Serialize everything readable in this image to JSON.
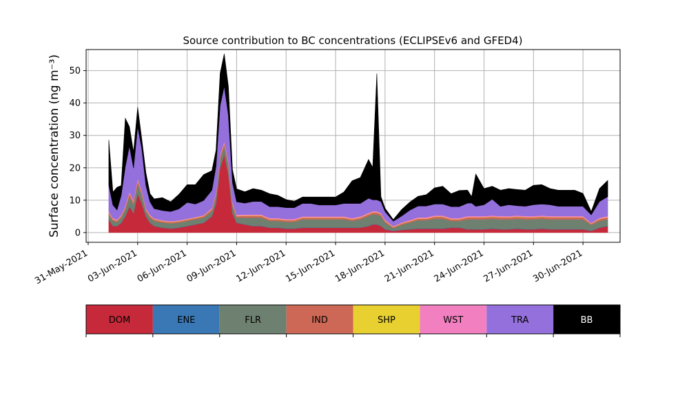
{
  "chart_data": {
    "type": "area",
    "stacked": true,
    "title": "Source contribution to BC concentrations (ECLIPSEv6 and GFED4)",
    "xlabel": "",
    "ylabel": "Surface concentration (ng m⁻³)",
    "ylim": [
      -3,
      56.5
    ],
    "xlim": [
      "2021-05-30T21:00",
      "2021-07-02T06:00"
    ],
    "grid": true,
    "yticks": [
      0,
      10,
      20,
      30,
      40,
      50
    ],
    "xticks": [
      "31-May-2021",
      "03-Jun-2021",
      "06-Jun-2021",
      "09-Jun-2021",
      "12-Jun-2021",
      "15-Jun-2021",
      "18-Jun-2021",
      "21-Jun-2021",
      "24-Jun-2021",
      "27-Jun-2021",
      "30-Jun-2021"
    ],
    "xtick_dates": [
      "2021-05-31",
      "2021-06-03",
      "2021-06-06",
      "2021-06-09",
      "2021-06-12",
      "2021-06-15",
      "2021-06-18",
      "2021-06-21",
      "2021-06-24",
      "2021-06-27",
      "2021-06-30"
    ],
    "legend_position": "below",
    "x": [
      "2021-06-01T06:00",
      "2021-06-01T12:00",
      "2021-06-01T18:00",
      "2021-06-02T00:00",
      "2021-06-02T06:00",
      "2021-06-02T12:00",
      "2021-06-02T18:00",
      "2021-06-03T00:00",
      "2021-06-03T06:00",
      "2021-06-03T12:00",
      "2021-06-03T18:00",
      "2021-06-04T00:00",
      "2021-06-04T12:00",
      "2021-06-05T00:00",
      "2021-06-05T12:00",
      "2021-06-06T00:00",
      "2021-06-06T12:00",
      "2021-06-07T00:00",
      "2021-06-07T12:00",
      "2021-06-07T18:00",
      "2021-06-08T00:00",
      "2021-06-08T06:00",
      "2021-06-08T12:00",
      "2021-06-08T18:00",
      "2021-06-09T00:00",
      "2021-06-09T12:00",
      "2021-06-10T00:00",
      "2021-06-10T12:00",
      "2021-06-11T00:00",
      "2021-06-11T12:00",
      "2021-06-12T00:00",
      "2021-06-12T12:00",
      "2021-06-13T00:00",
      "2021-06-13T12:00",
      "2021-06-14T00:00",
      "2021-06-14T12:00",
      "2021-06-15T00:00",
      "2021-06-15T12:00",
      "2021-06-16T00:00",
      "2021-06-16T12:00",
      "2021-06-17T00:00",
      "2021-06-17T06:00",
      "2021-06-17T12:00",
      "2021-06-17T18:00",
      "2021-06-18T00:00",
      "2021-06-18T12:00",
      "2021-06-19T00:00",
      "2021-06-19T12:00",
      "2021-06-20T00:00",
      "2021-06-20T12:00",
      "2021-06-21T00:00",
      "2021-06-21T12:00",
      "2021-06-22T00:00",
      "2021-06-22T12:00",
      "2021-06-23T00:00",
      "2021-06-23T06:00",
      "2021-06-23T12:00",
      "2021-06-24T00:00",
      "2021-06-24T12:00",
      "2021-06-25T00:00",
      "2021-06-25T12:00",
      "2021-06-26T00:00",
      "2021-06-26T12:00",
      "2021-06-27T00:00",
      "2021-06-27T12:00",
      "2021-06-28T00:00",
      "2021-06-28T12:00",
      "2021-06-29T00:00",
      "2021-06-29T12:00",
      "2021-06-30T00:00",
      "2021-06-30T12:00",
      "2021-07-01T00:00",
      "2021-07-01T12:00"
    ],
    "series": [
      {
        "name": "DOM",
        "color": "#c62a3a",
        "values": [
          4,
          2,
          2,
          3,
          5,
          8,
          6,
          12,
          9,
          5,
          3,
          2,
          1.5,
          1.2,
          1.5,
          2,
          2.5,
          3,
          5,
          9,
          20,
          24,
          18,
          6,
          3,
          2.5,
          2,
          2,
          1.5,
          1.5,
          1.2,
          1.2,
          1.5,
          1.5,
          1.5,
          1.5,
          1.5,
          1.5,
          1.5,
          1.5,
          2,
          2.5,
          2.5,
          2,
          1,
          0.5,
          0.8,
          1,
          1.2,
          1.2,
          1.2,
          1.2,
          1.5,
          1.5,
          1,
          1,
          1,
          1,
          1.2,
          1,
          1,
          1.2,
          1,
          1,
          1.2,
          1,
          1,
          1,
          1,
          1,
          0.5,
          1.5,
          2
        ]
      },
      {
        "name": "ENE",
        "color": "#3a78b5",
        "values": [
          0.1,
          0.1,
          0.1,
          0.1,
          0.1,
          0.1,
          0.1,
          0.1,
          0.1,
          0.1,
          0.1,
          0.1,
          0.1,
          0.1,
          0.1,
          0.1,
          0.1,
          0.1,
          0.1,
          0.1,
          0.1,
          0.1,
          0.1,
          0.1,
          0.1,
          0.1,
          0.1,
          0.1,
          0.1,
          0.1,
          0.1,
          0.1,
          0.1,
          0.1,
          0.1,
          0.1,
          0.1,
          0.1,
          0.1,
          0.1,
          0.1,
          0.1,
          0.1,
          0.1,
          0.1,
          0.1,
          0.1,
          0.1,
          0.1,
          0.1,
          0.1,
          0.1,
          0.1,
          0.1,
          0.1,
          0.1,
          0.1,
          0.1,
          0.1,
          0.1,
          0.1,
          0.1,
          0.1,
          0.1,
          0.1,
          0.1,
          0.1,
          0.1,
          0.1,
          0.1,
          0.1,
          0.1,
          0.1
        ]
      },
      {
        "name": "FLR",
        "color": "#6e8070",
        "values": [
          1.5,
          1.5,
          1.2,
          1.5,
          2,
          3,
          2.5,
          3,
          2.5,
          1.5,
          1.5,
          1.5,
          1.5,
          1.5,
          1.5,
          1.5,
          1.5,
          1.5,
          1.5,
          2,
          2.5,
          2.5,
          2.5,
          2,
          1.5,
          2,
          2.5,
          2.5,
          2,
          2,
          2,
          2,
          2.5,
          2.5,
          2.5,
          2.5,
          2.5,
          2.5,
          2,
          2.5,
          3,
          3,
          3,
          3,
          2,
          0.8,
          1.5,
          2,
          2.5,
          2.5,
          3,
          3,
          2,
          2,
          3,
          3,
          3,
          3,
          3,
          3,
          3,
          3,
          3,
          3,
          3,
          3,
          3,
          3,
          3,
          3,
          1.8,
          2,
          2
        ]
      },
      {
        "name": "IND",
        "color": "#cc6855",
        "values": [
          0.6,
          0.5,
          0.4,
          0.5,
          0.7,
          1,
          0.8,
          1,
          0.8,
          0.5,
          0.5,
          0.5,
          0.4,
          0.4,
          0.4,
          0.4,
          0.4,
          0.5,
          0.6,
          0.8,
          1,
          1,
          1,
          0.8,
          0.5,
          0.6,
          0.6,
          0.6,
          0.5,
          0.5,
          0.5,
          0.5,
          0.5,
          0.5,
          0.5,
          0.5,
          0.5,
          0.5,
          0.5,
          0.5,
          0.6,
          0.6,
          0.6,
          0.6,
          0.5,
          0.3,
          0.4,
          0.4,
          0.5,
          0.5,
          0.6,
          0.6,
          0.5,
          0.5,
          0.6,
          0.6,
          0.6,
          0.6,
          0.6,
          0.6,
          0.6,
          0.6,
          0.6,
          0.6,
          0.6,
          0.6,
          0.6,
          0.6,
          0.6,
          0.6,
          0.3,
          0.6,
          0.6
        ]
      },
      {
        "name": "SHP",
        "color": "#e8d030",
        "values": [
          0.1,
          0.1,
          0.1,
          0.1,
          0.1,
          0.1,
          0.1,
          0.1,
          0.1,
          0.1,
          0.1,
          0.1,
          0.1,
          0.1,
          0.1,
          0.1,
          0.1,
          0.1,
          0.1,
          0.1,
          0.1,
          0.1,
          0.1,
          0.1,
          0.1,
          0.1,
          0.1,
          0.1,
          0.1,
          0.1,
          0.1,
          0.1,
          0.1,
          0.1,
          0.1,
          0.1,
          0.1,
          0.1,
          0.1,
          0.1,
          0.1,
          0.1,
          0.1,
          0.1,
          0.1,
          0.1,
          0.1,
          0.1,
          0.1,
          0.1,
          0.1,
          0.1,
          0.1,
          0.1,
          0.1,
          0.1,
          0.1,
          0.1,
          0.1,
          0.1,
          0.1,
          0.1,
          0.1,
          0.1,
          0.1,
          0.1,
          0.1,
          0.1,
          0.1,
          0.1,
          0.1,
          0.1,
          0.1
        ]
      },
      {
        "name": "WST",
        "color": "#f280c0",
        "values": [
          0.3,
          0.3,
          0.2,
          0.3,
          0.4,
          0.5,
          0.4,
          0.5,
          0.4,
          0.3,
          0.3,
          0.2,
          0.2,
          0.2,
          0.2,
          0.2,
          0.2,
          0.2,
          0.3,
          0.4,
          0.5,
          0.5,
          0.5,
          0.4,
          0.3,
          0.3,
          0.3,
          0.3,
          0.3,
          0.3,
          0.3,
          0.3,
          0.3,
          0.3,
          0.3,
          0.3,
          0.3,
          0.3,
          0.3,
          0.3,
          0.3,
          0.3,
          0.3,
          0.3,
          0.3,
          0.2,
          0.2,
          0.3,
          0.3,
          0.3,
          0.3,
          0.3,
          0.3,
          0.3,
          0.3,
          0.3,
          0.3,
          0.3,
          0.3,
          0.3,
          0.3,
          0.3,
          0.3,
          0.3,
          0.3,
          0.3,
          0.3,
          0.3,
          0.3,
          0.3,
          0.2,
          0.3,
          0.3
        ]
      },
      {
        "name": "TRA",
        "color": "#9370db",
        "values": [
          8,
          4,
          3,
          6,
          12,
          14,
          10,
          16,
          13,
          7,
          4,
          3,
          3,
          3,
          3.5,
          5,
          4,
          4.5,
          5.5,
          8,
          15,
          17,
          14,
          6,
          4,
          3.5,
          4,
          4,
          3.5,
          3.5,
          3.5,
          3.5,
          4,
          4,
          3.5,
          3.5,
          3.5,
          4,
          4.5,
          4,
          4.5,
          3.5,
          3.5,
          3.5,
          2.5,
          1.5,
          2,
          3,
          3.5,
          3.5,
          3.5,
          3.5,
          3.5,
          3.5,
          4,
          4,
          3,
          3.5,
          5,
          3,
          3.5,
          3,
          3,
          3.5,
          3.5,
          3.5,
          3,
          3,
          3,
          3,
          2.5,
          5,
          6
        ]
      },
      {
        "name": "BB",
        "color": "#000000",
        "values": [
          14,
          4,
          7,
          3,
          15,
          6,
          5,
          6,
          3,
          4,
          2.5,
          3,
          4,
          3,
          4.5,
          5.5,
          6,
          8,
          6,
          5,
          10,
          10,
          9,
          4,
          4,
          3.5,
          4,
          3.5,
          4,
          3.5,
          2.5,
          2,
          2,
          2,
          2.5,
          2.5,
          2.5,
          3.5,
          7,
          8,
          12,
          10,
          39,
          1.5,
          1,
          0.5,
          2,
          2.5,
          3,
          3.5,
          5,
          5.5,
          4,
          5,
          4,
          2,
          10,
          5,
          4,
          5,
          5,
          5,
          5,
          6,
          6,
          5,
          5,
          5,
          5,
          4,
          1,
          4,
          5
        ]
      }
    ]
  }
}
